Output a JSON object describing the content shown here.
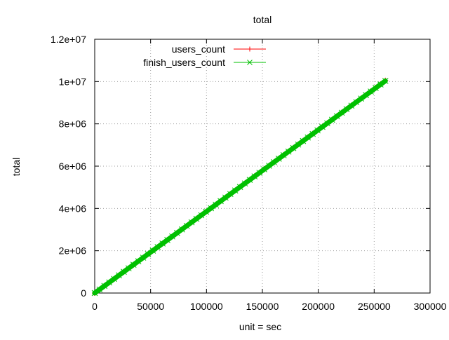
{
  "chart_data": {
    "type": "line",
    "title": "total",
    "xlabel": "unit = sec",
    "ylabel": "total",
    "xlim": [
      0,
      300000
    ],
    "ylim": [
      0,
      12000000
    ],
    "x_ticks": [
      0,
      50000,
      100000,
      150000,
      200000,
      250000,
      300000
    ],
    "x_tick_labels": [
      "0",
      "50000",
      "100000",
      "150000",
      "200000",
      "250000",
      "300000"
    ],
    "y_ticks": [
      0,
      2000000,
      4000000,
      6000000,
      8000000,
      10000000,
      12000000
    ],
    "y_tick_labels": [
      "0",
      "2e+06",
      "4e+06",
      "6e+06",
      "8e+06",
      "1e+07",
      "1.2e+07"
    ],
    "grid": true,
    "legend_position": "top-left",
    "series": [
      {
        "name": "users_count",
        "color": "#ff0000",
        "marker": "plus",
        "x": [
          0,
          260000
        ],
        "y": [
          0,
          10050000
        ]
      },
      {
        "name": "finish_users_count",
        "color": "#00c000",
        "marker": "cross",
        "x": [
          0,
          260000
        ],
        "y": [
          0,
          10030000
        ]
      }
    ]
  }
}
